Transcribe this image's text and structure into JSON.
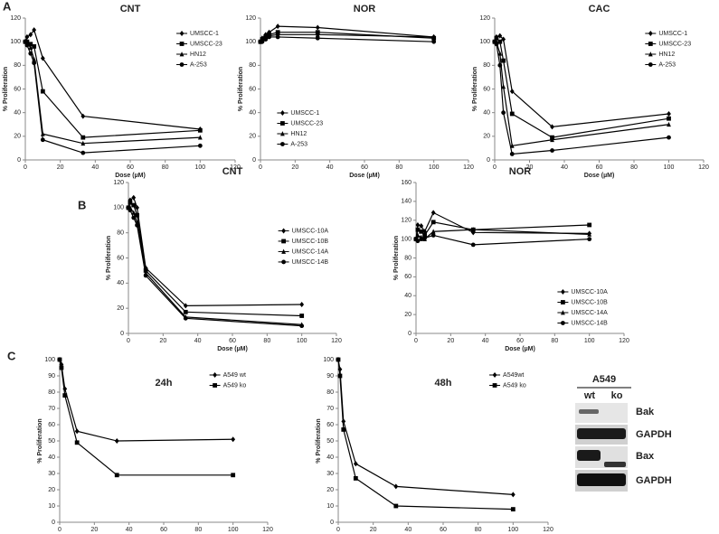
{
  "panel_labels": [
    "A",
    "B",
    "C"
  ],
  "chart_data": [
    {
      "type": "line",
      "title": "CNT",
      "x_label": "Dose (µM)",
      "y_label": "% Proliferation",
      "x": [
        0,
        1,
        3,
        5,
        10,
        33,
        100
      ],
      "xlim": [
        0,
        120
      ],
      "xticks": [
        0,
        20,
        40,
        60,
        80,
        100,
        120
      ],
      "ylim": [
        0,
        120
      ],
      "yticks": [
        0,
        20,
        40,
        60,
        80,
        100,
        120
      ],
      "legend": "upper right",
      "series": [
        {
          "name": "UMSCC-1",
          "color": "#000000",
          "marker": "diamond",
          "values": [
            100,
            104,
            106,
            110,
            86,
            37,
            26
          ]
        },
        {
          "name": "UMSCC-23",
          "color": "#000000",
          "marker": "square",
          "values": [
            100,
            100,
            98,
            96,
            58,
            19,
            25
          ]
        },
        {
          "name": "HN12",
          "color": "#000000",
          "marker": "triangle",
          "values": [
            100,
            99,
            95,
            85,
            22,
            14,
            19
          ]
        },
        {
          "name": "A-253",
          "color": "#000000",
          "marker": "circle",
          "values": [
            100,
            97,
            90,
            82,
            17,
            6,
            12
          ]
        }
      ]
    },
    {
      "type": "line",
      "title": "NOR",
      "x_label": "Dose (µM)",
      "y_label": "% Proliferation",
      "x": [
        0,
        1,
        3,
        5,
        10,
        33,
        100
      ],
      "xlim": [
        0,
        120
      ],
      "xticks": [
        0,
        20,
        40,
        60,
        80,
        100,
        120
      ],
      "ylim": [
        0,
        120
      ],
      "yticks": [
        0,
        20,
        40,
        60,
        80,
        100,
        120
      ],
      "legend": "lower left",
      "series": [
        {
          "name": "UMSCC-1",
          "color": "#000000",
          "marker": "diamond",
          "values": [
            100,
            103,
            106,
            108,
            113,
            112,
            104
          ]
        },
        {
          "name": "UMSCC-23",
          "color": "#000000",
          "marker": "square",
          "values": [
            100,
            102,
            104,
            106,
            108,
            108,
            103
          ]
        },
        {
          "name": "HN12",
          "color": "#000000",
          "marker": "triangle",
          "values": [
            100,
            101,
            103,
            105,
            106,
            106,
            104
          ]
        },
        {
          "name": "A-253",
          "color": "#000000",
          "marker": "circle",
          "values": [
            100,
            100,
            102,
            104,
            104,
            103,
            100
          ]
        }
      ]
    },
    {
      "type": "line",
      "title": "CAC",
      "x_label": "Dose (µM)",
      "y_label": "% Proliferation",
      "x": [
        0,
        1,
        3,
        5,
        10,
        33,
        100
      ],
      "xlim": [
        0,
        120
      ],
      "xticks": [
        0,
        20,
        40,
        60,
        80,
        100,
        120
      ],
      "ylim": [
        0,
        120
      ],
      "yticks": [
        0,
        20,
        40,
        60,
        80,
        100,
        120
      ],
      "legend": "upper right",
      "series": [
        {
          "name": "UMSCC-1",
          "color": "#000000",
          "marker": "diamond",
          "values": [
            100,
            104,
            105,
            102,
            58,
            28,
            39
          ]
        },
        {
          "name": "UMSCC-23",
          "color": "#000000",
          "marker": "square",
          "values": [
            100,
            103,
            100,
            84,
            39,
            19,
            35
          ]
        },
        {
          "name": "HN12",
          "color": "#000000",
          "marker": "triangle",
          "values": [
            100,
            100,
            90,
            62,
            12,
            17,
            30
          ]
        },
        {
          "name": "A-253",
          "color": "#000000",
          "marker": "circle",
          "values": [
            100,
            98,
            80,
            40,
            5,
            8,
            19
          ]
        }
      ]
    },
    {
      "type": "line",
      "title": "CNT",
      "x_label": "Dose (µM)",
      "y_label": "% Proliferation",
      "x": [
        0,
        1,
        3,
        5,
        10,
        33,
        100
      ],
      "xlim": [
        0,
        120
      ],
      "xticks": [
        0,
        20,
        40,
        60,
        80,
        100,
        120
      ],
      "ylim": [
        0,
        120
      ],
      "yticks": [
        0,
        20,
        40,
        60,
        80,
        100,
        120
      ],
      "legend": "middle right",
      "series": [
        {
          "name": "UMSCC-10A",
          "color": "#000000",
          "marker": "diamond",
          "values": [
            100,
            106,
            108,
            100,
            52,
            22,
            23
          ]
        },
        {
          "name": "UMSCC-10B",
          "color": "#000000",
          "marker": "square",
          "values": [
            100,
            104,
            102,
            94,
            50,
            17,
            14
          ]
        },
        {
          "name": "UMSCC-14A",
          "color": "#000000",
          "marker": "triangle",
          "values": [
            100,
            100,
            96,
            88,
            48,
            13,
            7
          ]
        },
        {
          "name": "UMSCC-14B",
          "color": "#000000",
          "marker": "circle",
          "values": [
            100,
            98,
            92,
            86,
            46,
            12,
            6
          ]
        }
      ]
    },
    {
      "type": "line",
      "title": "NOR",
      "x_label": "Dose (µM)",
      "y_label": "% Proliferation",
      "x": [
        0,
        1,
        3,
        5,
        10,
        33,
        100
      ],
      "xlim": [
        0,
        120
      ],
      "xticks": [
        0,
        20,
        40,
        60,
        80,
        100,
        120
      ],
      "ylim": [
        0,
        160
      ],
      "yticks": [
        0,
        20,
        40,
        60,
        80,
        100,
        120,
        140,
        160
      ],
      "legend": "lower right",
      "series": [
        {
          "name": "UMSCC-10A",
          "color": "#000000",
          "marker": "diamond",
          "values": [
            100,
            115,
            114,
            108,
            128,
            107,
            106
          ]
        },
        {
          "name": "UMSCC-10B",
          "color": "#000000",
          "marker": "square",
          "values": [
            100,
            110,
            108,
            104,
            118,
            110,
            115
          ]
        },
        {
          "name": "UMSCC-14A",
          "color": "#000000",
          "marker": "triangle",
          "values": [
            100,
            104,
            102,
            100,
            108,
            110,
            105
          ]
        },
        {
          "name": "UMSCC-14B",
          "color": "#000000",
          "marker": "circle",
          "values": [
            100,
            98,
            100,
            101,
            104,
            94,
            100
          ]
        }
      ]
    },
    {
      "type": "line",
      "title": "24h",
      "x_label": "CNT Dose (µM)",
      "y_label": "% Proliferation",
      "x": [
        0,
        1,
        3,
        10,
        33,
        100
      ],
      "xlim": [
        0,
        120
      ],
      "xticks": [
        0,
        20,
        40,
        60,
        80,
        100,
        120
      ],
      "ylim": [
        0,
        100
      ],
      "yticks": [
        0,
        10,
        20,
        30,
        40,
        50,
        60,
        70,
        80,
        90,
        100
      ],
      "legend": "upper right",
      "series": [
        {
          "name": "A549 wt",
          "color": "#000000",
          "marker": "diamond",
          "values": [
            100,
            97,
            82,
            56,
            50,
            51
          ]
        },
        {
          "name": "A549 ko",
          "color": "#000000",
          "marker": "square",
          "values": [
            100,
            95,
            78,
            49,
            29,
            29
          ]
        }
      ]
    },
    {
      "type": "line",
      "title": "48h",
      "x_label": "CNT Dose (µM)",
      "y_label": "% Proliferation",
      "x": [
        0,
        1,
        3,
        10,
        33,
        100
      ],
      "xlim": [
        0,
        120
      ],
      "xticks": [
        0,
        20,
        40,
        60,
        80,
        100,
        120
      ],
      "ylim": [
        0,
        100
      ],
      "yticks": [
        0,
        10,
        20,
        30,
        40,
        50,
        60,
        70,
        80,
        90,
        100
      ],
      "legend": "upper right",
      "series": [
        {
          "name": "A549wt",
          "color": "#000000",
          "marker": "diamond",
          "values": [
            100,
            94,
            62,
            36,
            22,
            17
          ]
        },
        {
          "name": "A549 ko",
          "color": "#000000",
          "marker": "square",
          "values": [
            100,
            90,
            57,
            27,
            10,
            8
          ]
        }
      ]
    }
  ],
  "blot": {
    "title": "A549",
    "lanes": [
      "wt",
      "ko"
    ],
    "rows": [
      "Bak",
      "GAPDH",
      "Bax",
      "GAPDH"
    ]
  }
}
